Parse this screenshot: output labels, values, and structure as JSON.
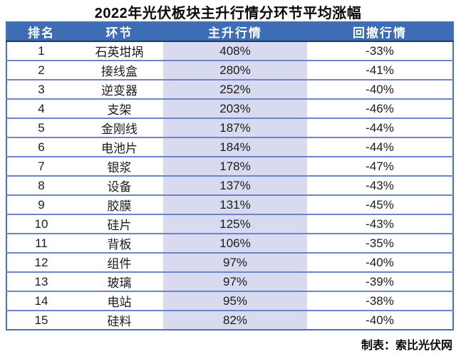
{
  "title": "2022年光伏板块主升行情分环节平均涨幅",
  "footer": {
    "credit": "制表：索比光伏网"
  },
  "colors": {
    "header_bg": "#3C6DB5",
    "header_text": "#FFFFFF",
    "main_rise_col_bg": "#D8DBEF",
    "row_divider": "#6E84C6",
    "outer_border": "#4A6FB5",
    "header_divider": "#1F3864",
    "title_text": "#0A0A0A",
    "body_text": "#1B1B1B"
  },
  "chart_data": {
    "type": "table",
    "title": "2022年光伏板块主升行情分环节平均涨幅",
    "columns": [
      "排名",
      "环节",
      "主升行情",
      "回撤行情"
    ],
    "rows": [
      {
        "rank": "1",
        "segment": "石英坩埚",
        "main_rise": "408%",
        "pullback": "-33%"
      },
      {
        "rank": "2",
        "segment": "接线盒",
        "main_rise": "280%",
        "pullback": "-41%"
      },
      {
        "rank": "3",
        "segment": "逆变器",
        "main_rise": "252%",
        "pullback": "-40%"
      },
      {
        "rank": "4",
        "segment": "支架",
        "main_rise": "203%",
        "pullback": "-46%"
      },
      {
        "rank": "5",
        "segment": "金刚线",
        "main_rise": "187%",
        "pullback": "-44%"
      },
      {
        "rank": "6",
        "segment": "电池片",
        "main_rise": "184%",
        "pullback": "-44%"
      },
      {
        "rank": "7",
        "segment": "银浆",
        "main_rise": "178%",
        "pullback": "-47%"
      },
      {
        "rank": "8",
        "segment": "设备",
        "main_rise": "137%",
        "pullback": "-43%"
      },
      {
        "rank": "9",
        "segment": "胶膜",
        "main_rise": "131%",
        "pullback": "-45%"
      },
      {
        "rank": "10",
        "segment": "硅片",
        "main_rise": "125%",
        "pullback": "-43%"
      },
      {
        "rank": "11",
        "segment": "背板",
        "main_rise": "106%",
        "pullback": "-35%"
      },
      {
        "rank": "12",
        "segment": "组件",
        "main_rise": "97%",
        "pullback": "-40%"
      },
      {
        "rank": "13",
        "segment": "玻璃",
        "main_rise": "97%",
        "pullback": "-39%"
      },
      {
        "rank": "14",
        "segment": "电站",
        "main_rise": "95%",
        "pullback": "-38%"
      },
      {
        "rank": "15",
        "segment": "硅料",
        "main_rise": "82%",
        "pullback": "-40%"
      }
    ],
    "main_rise_pct": [
      408,
      280,
      252,
      203,
      187,
      184,
      178,
      137,
      131,
      125,
      106,
      97,
      97,
      95,
      82
    ],
    "pullback_pct": [
      -33,
      -41,
      -40,
      -46,
      -44,
      -44,
      -47,
      -43,
      -45,
      -43,
      -35,
      -40,
      -39,
      -38,
      -40
    ],
    "source_note": "制表：索比光伏网"
  }
}
